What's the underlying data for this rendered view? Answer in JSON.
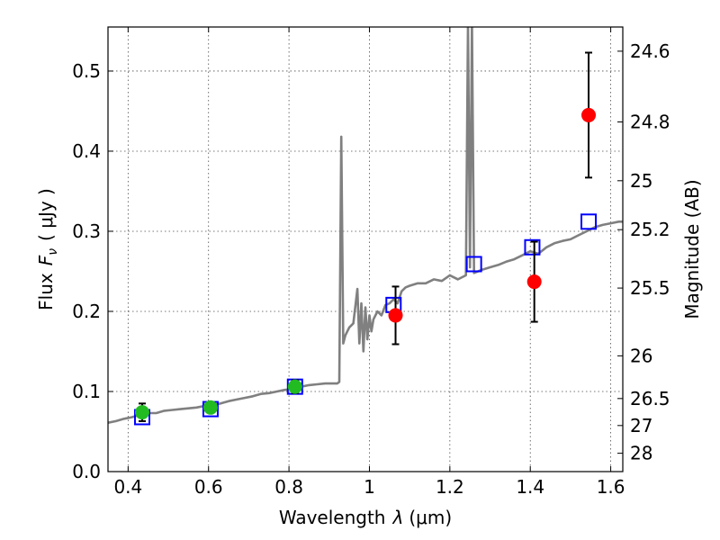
{
  "chart_data": {
    "type": "scatter",
    "xlabel_text": "Wavelength",
    "xlabel_lambda": "λ",
    "xlabel_unit": "(μm)",
    "ylabel_text": "Flux",
    "ylabel_symbol": "F",
    "ylabel_sub": "ν",
    "ylabel_unit": "( μJy )",
    "y2label": "Magnitude (AB)",
    "xlim": [
      0.35,
      1.63
    ],
    "ylim": [
      0.0,
      0.555
    ],
    "xticks": [
      0.4,
      0.6,
      0.8,
      1.0,
      1.2,
      1.4,
      1.6
    ],
    "xtick_labels": [
      "0.4",
      "0.6",
      "0.8",
      "1",
      "1.2",
      "1.4",
      "1.6"
    ],
    "yticks": [
      0.0,
      0.1,
      0.2,
      0.3,
      0.4,
      0.5
    ],
    "ytick_labels": [
      "0.0",
      "0.1",
      "0.2",
      "0.3",
      "0.4",
      "0.5"
    ],
    "y2ticks": [
      {
        "label": "24.6",
        "flux": 0.5248
      },
      {
        "label": "24.8",
        "flux": 0.4365
      },
      {
        "label": "25",
        "flux": 0.3631
      },
      {
        "label": "25.2",
        "flux": 0.302
      },
      {
        "label": "25.5",
        "flux": 0.2291
      },
      {
        "label": "26",
        "flux": 0.1445
      },
      {
        "label": "26.5",
        "flux": 0.0912
      },
      {
        "label": "27",
        "flux": 0.0575
      },
      {
        "label": "28",
        "flux": 0.0229
      }
    ],
    "spectrum_color": "#808080",
    "spectrum": {
      "x": [
        0.35,
        0.37,
        0.39,
        0.41,
        0.43,
        0.45,
        0.47,
        0.49,
        0.51,
        0.53,
        0.55,
        0.57,
        0.59,
        0.61,
        0.63,
        0.65,
        0.67,
        0.69,
        0.71,
        0.73,
        0.75,
        0.77,
        0.79,
        0.81,
        0.83,
        0.85,
        0.87,
        0.89,
        0.91,
        0.92,
        0.925,
        0.93,
        0.935,
        0.94,
        0.95,
        0.96,
        0.97,
        0.975,
        0.98,
        0.985,
        0.99,
        0.995,
        1.0,
        1.005,
        1.01,
        1.02,
        1.03,
        1.04,
        1.05,
        1.06,
        1.07,
        1.08,
        1.09,
        1.1,
        1.12,
        1.14,
        1.16,
        1.18,
        1.2,
        1.22,
        1.24,
        1.245,
        1.25,
        1.255,
        1.26,
        1.27,
        1.28,
        1.3,
        1.32,
        1.34,
        1.36,
        1.38,
        1.4,
        1.42,
        1.44,
        1.46,
        1.48,
        1.5,
        1.52,
        1.54,
        1.56,
        1.58,
        1.6,
        1.62,
        1.63
      ],
      "y": [
        0.061,
        0.063,
        0.066,
        0.068,
        0.071,
        0.073,
        0.073,
        0.076,
        0.077,
        0.078,
        0.079,
        0.08,
        0.082,
        0.083,
        0.085,
        0.088,
        0.09,
        0.092,
        0.094,
        0.097,
        0.098,
        0.1,
        0.102,
        0.103,
        0.106,
        0.108,
        0.109,
        0.11,
        0.11,
        0.11,
        0.112,
        0.418,
        0.16,
        0.17,
        0.18,
        0.185,
        0.228,
        0.16,
        0.21,
        0.15,
        0.205,
        0.165,
        0.195,
        0.175,
        0.19,
        0.2,
        0.195,
        0.208,
        0.21,
        0.215,
        0.21,
        0.225,
        0.23,
        0.232,
        0.235,
        0.235,
        0.24,
        0.238,
        0.245,
        0.24,
        0.245,
        0.56,
        0.255,
        0.56,
        0.248,
        0.25,
        0.252,
        0.255,
        0.258,
        0.262,
        0.265,
        0.27,
        0.275,
        0.272,
        0.28,
        0.285,
        0.288,
        0.29,
        0.295,
        0.3,
        0.305,
        0.308,
        0.31,
        0.312,
        0.312
      ]
    },
    "model_points": {
      "marker": "open-square",
      "color": "#0000ff",
      "x": [
        0.435,
        0.605,
        0.815,
        1.06,
        1.26,
        1.405,
        1.545
      ],
      "y": [
        0.068,
        0.078,
        0.106,
        0.208,
        0.259,
        0.28,
        0.312
      ]
    },
    "observed_points": [
      {
        "x": 0.435,
        "y": 0.074,
        "err": 0.011,
        "color": "#22bb22"
      },
      {
        "x": 0.605,
        "y": 0.08,
        "err": 0.006,
        "color": "#22bb22"
      },
      {
        "x": 0.815,
        "y": 0.106,
        "err": 0.008,
        "color": "#22bb22"
      },
      {
        "x": 1.065,
        "y": 0.195,
        "err": 0.036,
        "color": "#ff0000"
      },
      {
        "x": 1.41,
        "y": 0.237,
        "err": 0.05,
        "color": "#ff0000"
      },
      {
        "x": 1.545,
        "y": 0.445,
        "err": 0.078,
        "color": "#ff0000"
      }
    ]
  }
}
